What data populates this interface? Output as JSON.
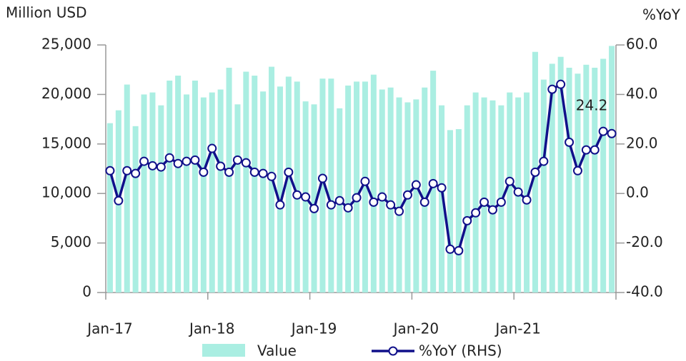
{
  "chart_data": {
    "type": "bar-line",
    "y_label": "Million USD",
    "y2_label": "%YoY",
    "categories": [
      "Jan-17",
      null,
      null,
      null,
      null,
      null,
      null,
      null,
      null,
      null,
      null,
      null,
      "Jan-18",
      null,
      null,
      null,
      null,
      null,
      null,
      null,
      null,
      null,
      null,
      null,
      "Jan-19",
      null,
      null,
      null,
      null,
      null,
      null,
      null,
      null,
      null,
      null,
      null,
      "Jan-20",
      null,
      null,
      null,
      null,
      null,
      null,
      null,
      null,
      null,
      null,
      null,
      "Jan-21",
      null,
      null,
      null,
      null,
      null,
      null,
      null,
      null,
      null,
      null,
      null
    ],
    "series": [
      {
        "name": "Value",
        "type": "bar",
        "color": "#aaeee2",
        "values": [
          17100,
          18400,
          21000,
          16800,
          20000,
          20200,
          18900,
          21400,
          21900,
          20000,
          21400,
          19700,
          20200,
          20500,
          22700,
          19000,
          22300,
          21900,
          20300,
          22800,
          20800,
          21800,
          21300,
          19300,
          19000,
          21600,
          21600,
          18600,
          20900,
          21300,
          21300,
          22000,
          20500,
          20700,
          19700,
          19200,
          19500,
          20700,
          22400,
          18900,
          16400,
          16500,
          18900,
          20200,
          19700,
          19400,
          18900,
          20200,
          19700,
          20200,
          24300,
          21500,
          23100,
          23800,
          22700,
          22100,
          23000,
          22700,
          23600,
          24900
        ]
      },
      {
        "name": "%YoY (RHS)",
        "type": "line",
        "axis": "y2",
        "color": "#10108a",
        "values": [
          9.2,
          -2.9,
          9.2,
          8.1,
          13.0,
          11.2,
          10.7,
          14.4,
          12.1,
          13.0,
          13.5,
          8.6,
          18.2,
          11.0,
          8.6,
          13.5,
          12.4,
          8.6,
          8.1,
          6.9,
          -4.6,
          8.6,
          -0.6,
          -1.4,
          -6.1,
          6.1,
          -4.6,
          -2.9,
          -5.8,
          -1.7,
          4.9,
          -3.5,
          -1.4,
          -4.6,
          -7.2,
          -0.6,
          3.5,
          -3.5,
          4.0,
          2.3,
          -22.5,
          -23.1,
          -11.0,
          -7.8,
          -3.5,
          -6.6,
          -3.5,
          4.9,
          0.6,
          -2.6,
          8.6,
          13.0,
          42.1,
          44.1,
          20.7,
          9.2,
          17.6,
          17.6,
          25.1,
          24.2
        ]
      }
    ],
    "labeled_points": [
      59
    ],
    "ylim": [
      0,
      25000
    ],
    "yticks": [
      0,
      {
        "value": 5000,
        "label": "5,000"
      },
      {
        "value": 10000,
        "label": "10,000"
      },
      {
        "value": 15000,
        "label": "15,000"
      },
      {
        "value": 20000,
        "label": "20,000"
      },
      {
        "value": 25000,
        "label": "25,000"
      }
    ],
    "y2lim": [
      -40,
      60
    ],
    "y2ticks": [
      {
        "value": -40,
        "label": "-40.0"
      },
      {
        "value": -20,
        "label": "-20.0"
      },
      {
        "value": 0,
        "label": "0.0"
      },
      {
        "value": 20,
        "label": "20.0"
      },
      {
        "value": 40,
        "label": "40.0"
      },
      {
        "value": 60,
        "label": "60.0"
      }
    ],
    "negative_tick_color": "#e01010",
    "legend": "bottom",
    "grid": false
  }
}
